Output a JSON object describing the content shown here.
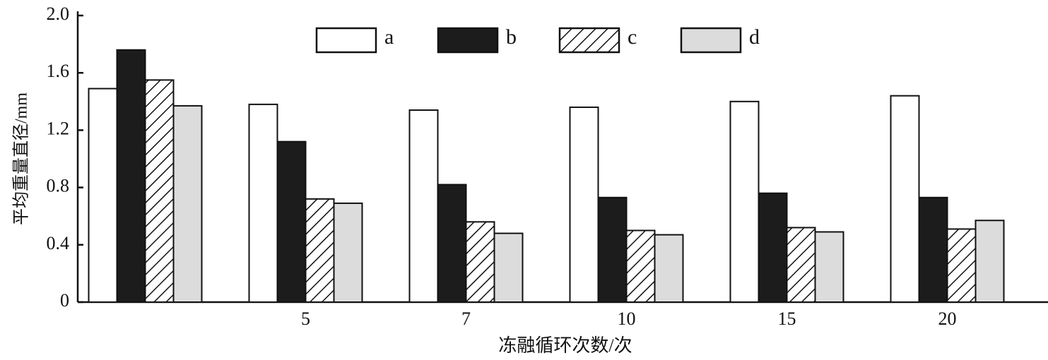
{
  "chart_data": {
    "type": "bar",
    "x_label": "冻融循环次数/次",
    "y_label": "平均重量直径/mm",
    "categories": [
      null,
      "5",
      "7",
      "10",
      "15",
      "20"
    ],
    "series": [
      {
        "name": "a",
        "color": "#ffffff",
        "values": [
          1.49,
          1.38,
          1.34,
          1.36,
          1.4,
          1.44
        ]
      },
      {
        "name": "b",
        "color": "#1c1c1c",
        "values": [
          1.76,
          1.12,
          0.82,
          0.73,
          0.76,
          0.73
        ]
      },
      {
        "name": "c",
        "color": "#ffffff",
        "hatch": true,
        "values": [
          1.55,
          0.72,
          0.56,
          0.5,
          0.52,
          0.51
        ]
      },
      {
        "name": "d",
        "color": "#dcdcdc",
        "values": [
          1.37,
          0.69,
          0.48,
          0.47,
          0.49,
          0.57
        ]
      }
    ],
    "ylim": [
      0,
      2.0
    ],
    "yticks": [
      0,
      0.4,
      0.8,
      1.2,
      1.6,
      {
        "value": 2.0,
        "label": "2.0"
      }
    ],
    "legend": "top"
  }
}
